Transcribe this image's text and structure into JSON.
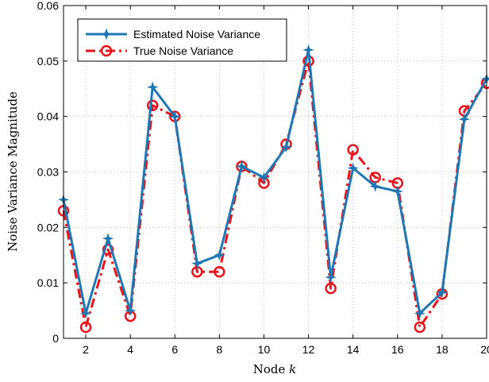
{
  "chart_data": {
    "type": "line",
    "xlabel": "Node",
    "xlabel_var": "k",
    "ylabel": "Noise Variance Magnitude",
    "xlim": [
      1,
      20
    ],
    "ylim": [
      0,
      0.06
    ],
    "xticks": [
      2,
      4,
      6,
      8,
      10,
      12,
      14,
      16,
      18,
      20
    ],
    "yticks": [
      0,
      0.01,
      0.02,
      0.03,
      0.04,
      0.05,
      0.06
    ],
    "ytick_labels": [
      "0",
      "0.01",
      "0.02",
      "0.03",
      "0.04",
      "0.05",
      "0.06"
    ],
    "grid": true,
    "legend_position": "top-left",
    "x": [
      1,
      2,
      3,
      4,
      5,
      6,
      7,
      8,
      9,
      10,
      11,
      12,
      13,
      14,
      15,
      16,
      17,
      18,
      19,
      20
    ],
    "series": [
      {
        "name": "Estimated Noise Variance",
        "color": "#1f77b4",
        "marker": "star",
        "style": "solid",
        "values": [
          0.025,
          0.0045,
          0.018,
          0.005,
          0.0453,
          0.04,
          0.0135,
          0.015,
          0.031,
          0.029,
          0.0345,
          0.052,
          0.011,
          0.0307,
          0.0274,
          0.0265,
          0.0045,
          0.0083,
          0.0395,
          0.0468
        ]
      },
      {
        "name": "True Noise Variance",
        "color": "#e8141c",
        "marker": "circle",
        "style": "dashdot",
        "values": [
          0.023,
          0.002,
          0.016,
          0.004,
          0.042,
          0.04,
          0.012,
          0.012,
          0.031,
          0.028,
          0.035,
          0.05,
          0.009,
          0.034,
          0.029,
          0.028,
          0.002,
          0.008,
          0.041,
          0.046
        ]
      }
    ]
  }
}
